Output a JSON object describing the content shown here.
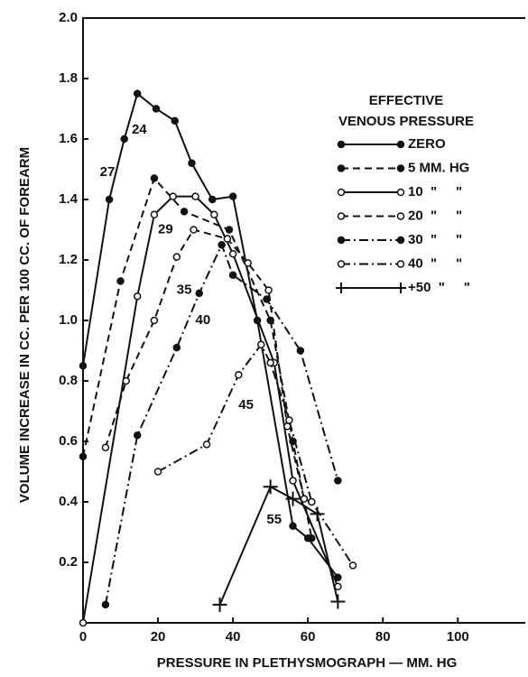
{
  "chart_data": {
    "type": "line",
    "xlabel": "PRESSURE IN PLETHYSMOGRAPH — MM. HG",
    "ylabel": "VOLUME INCREASE IN CC. PER 100 CC. OF FOREARM",
    "xlim": [
      0,
      118
    ],
    "ylim": [
      0,
      2.0
    ],
    "xticks": [
      0,
      20,
      40,
      60,
      80,
      100
    ],
    "yticks": [
      0.2,
      0.4,
      0.6,
      0.8,
      {
        "value": 1.0,
        "label": "1.0"
      },
      1.2,
      1.4,
      1.6,
      1.8,
      {
        "value": 2.0,
        "label": "2.0"
      }
    ],
    "legend_title": [
      "EFFECTIVE",
      "VENOUS PRESSURE"
    ],
    "legend": "upper right",
    "series": [
      {
        "name": "ZERO",
        "color": "#111111",
        "dash": "solid",
        "marker": "filled",
        "x": [
          0,
          7,
          11,
          14.5,
          19.5,
          24.5,
          29,
          34.5,
          40,
          46.5,
          56,
          60,
          68
        ],
        "values": [
          0.85,
          1.4,
          1.6,
          1.75,
          1.7,
          1.66,
          1.52,
          1.4,
          1.41,
          1.0,
          0.32,
          0.28,
          0.15
        ]
      },
      {
        "name": "5 MM. HG",
        "color": "#111111",
        "dash": "dashed",
        "marker": "filled",
        "x": [
          0,
          10,
          19,
          27,
          39,
          50,
          56,
          61
        ],
        "values": [
          0.55,
          1.13,
          1.47,
          1.36,
          1.3,
          1.0,
          0.6,
          0.28
        ]
      },
      {
        "name": "10  \"     \"",
        "color": "#111111",
        "dash": "solid",
        "marker": "open",
        "x": [
          0,
          14.5,
          19,
          24,
          30,
          35,
          40,
          51,
          56,
          68
        ],
        "values": [
          0,
          1.08,
          1.35,
          1.41,
          1.41,
          1.35,
          1.22,
          0.86,
          0.47,
          0.12
        ]
      },
      {
        "name": "20  \"     \"",
        "color": "#111111",
        "dash": "dashed",
        "marker": "open",
        "x": [
          6,
          11.5,
          19,
          25,
          29.5,
          38.5,
          44,
          49.5,
          54.5,
          59,
          61
        ],
        "values": [
          0.58,
          0.8,
          1.0,
          1.21,
          1.3,
          1.27,
          1.19,
          1.1,
          0.65,
          0.41,
          0.4
        ]
      },
      {
        "name": "30  \"     \"",
        "color": "#111111",
        "dash": "dashdot",
        "marker": "filled",
        "x": [
          6,
          14.5,
          25,
          31,
          37,
          40,
          49,
          58,
          68
        ],
        "values": [
          0.06,
          0.62,
          0.91,
          1.09,
          1.25,
          1.15,
          1.07,
          0.9,
          0.47
        ]
      },
      {
        "name": "40  \"     \"",
        "color": "#111111",
        "dash": "dashdot",
        "marker": "open",
        "x": [
          20,
          33,
          41.5,
          47.5,
          50,
          55,
          61,
          72
        ],
        "values": [
          0.5,
          0.59,
          0.82,
          0.92,
          0.86,
          0.67,
          0.4,
          0.19
        ]
      },
      {
        "name": "+50  \"     \"",
        "color": "#111111",
        "dash": "solid",
        "marker": "plus",
        "x": [
          36.5,
          50,
          56,
          62.5,
          68
        ],
        "values": [
          0.06,
          0.45,
          0.41,
          0.36,
          0.07
        ]
      }
    ],
    "annotations": [
      {
        "text": "24",
        "x": 15,
        "y": 1.63
      },
      {
        "text": "27",
        "x": 6.5,
        "y": 1.49
      },
      {
        "text": "29",
        "x": 22,
        "y": 1.3
      },
      {
        "text": "35",
        "x": 27,
        "y": 1.1
      },
      {
        "text": "40",
        "x": 32,
        "y": 1.0
      },
      {
        "text": "45",
        "x": 43.5,
        "y": 0.72
      },
      {
        "text": "55",
        "x": 51,
        "y": 0.34
      }
    ]
  }
}
